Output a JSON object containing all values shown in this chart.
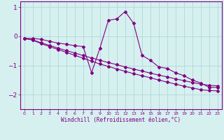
{
  "xlabel": "Windchill (Refroidissement éolien,°C)",
  "x": [
    0,
    1,
    2,
    3,
    4,
    5,
    6,
    7,
    8,
    9,
    10,
    11,
    12,
    13,
    14,
    15,
    16,
    17,
    18,
    19,
    20,
    21,
    22,
    23
  ],
  "series1": [
    -0.07,
    -0.07,
    -0.1,
    -0.17,
    -0.23,
    -0.27,
    -0.32,
    -0.35,
    -1.25,
    -0.4,
    0.55,
    0.6,
    0.85,
    0.45,
    -0.65,
    -0.82,
    -1.05,
    -1.1,
    -1.25,
    -1.35,
    -1.5,
    -1.6,
    -1.75,
    -1.75
  ],
  "series2": [
    -0.07,
    -0.13,
    -0.25,
    -0.35,
    -0.45,
    -0.55,
    -0.65,
    -0.75,
    -0.85,
    -0.95,
    -1.03,
    -1.12,
    -1.2,
    -1.28,
    -1.35,
    -1.42,
    -1.5,
    -1.57,
    -1.64,
    -1.71,
    -1.77,
    -1.83,
    -1.86,
    -1.87
  ],
  "series3": [
    -0.07,
    -0.12,
    -0.22,
    -0.31,
    -0.4,
    -0.49,
    -0.57,
    -0.66,
    -0.74,
    -0.82,
    -0.9,
    -0.97,
    -1.05,
    -1.12,
    -1.19,
    -1.26,
    -1.33,
    -1.39,
    -1.46,
    -1.52,
    -1.58,
    -1.64,
    -1.68,
    -1.7
  ],
  "color": "#800080",
  "bg_color": "#d6f0f0",
  "grid_color": "#b0d8d8",
  "ylim": [
    -2.5,
    1.2
  ],
  "xlim": [
    -0.5,
    23.5
  ],
  "yticks": [
    1,
    0,
    -1,
    -2
  ],
  "xticks": [
    0,
    1,
    2,
    3,
    4,
    5,
    6,
    7,
    8,
    9,
    10,
    11,
    12,
    13,
    14,
    15,
    16,
    17,
    18,
    19,
    20,
    21,
    22,
    23
  ],
  "xlabel_fontsize": 5.5,
  "ytick_fontsize": 6.5,
  "xtick_fontsize": 4.5,
  "linewidth": 0.8,
  "markersize": 2.0
}
